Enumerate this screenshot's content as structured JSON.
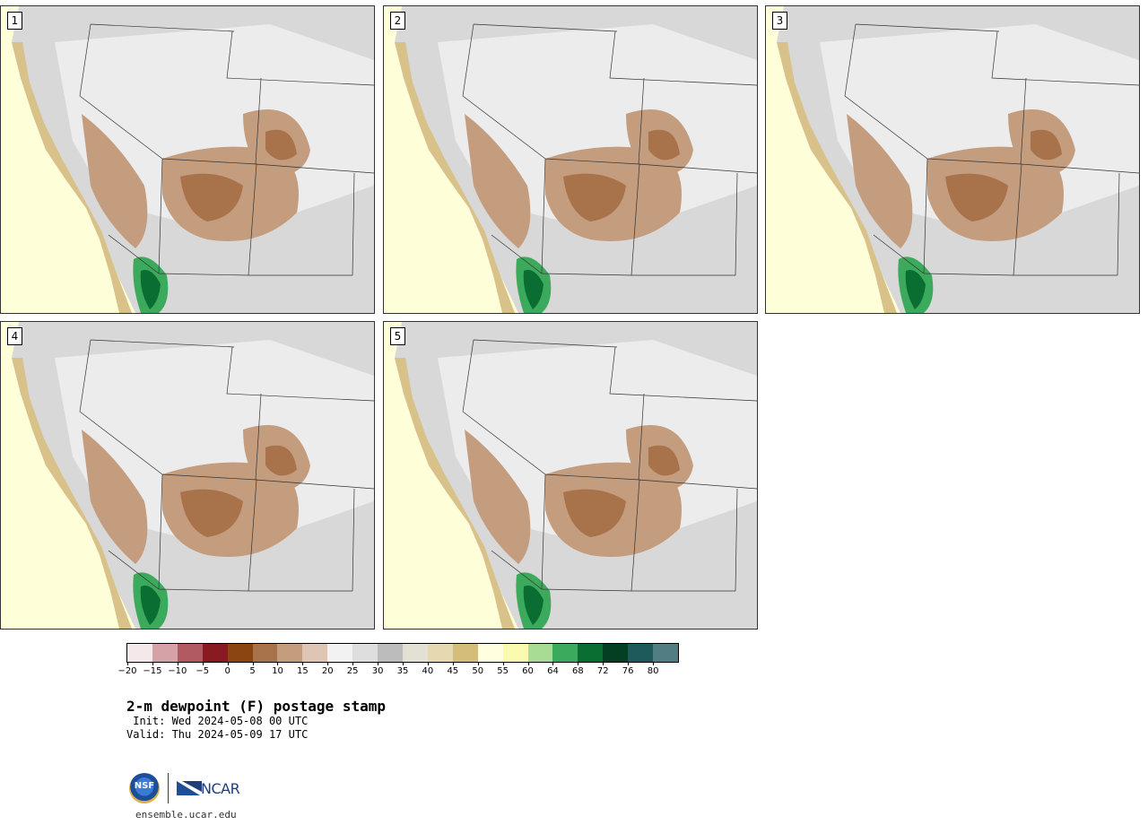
{
  "panels": [
    {
      "label": "1"
    },
    {
      "label": "2"
    },
    {
      "label": "3"
    },
    {
      "label": "4"
    },
    {
      "label": "5"
    }
  ],
  "colorbar": {
    "colors": [
      "#f5e8ea",
      "#d4a2a7",
      "#b25a62",
      "#8a1a22",
      "#8b4513",
      "#a8724a",
      "#c49c7e",
      "#dfc6b4",
      "#f2f2f2",
      "#dedede",
      "#bcbcbc",
      "#e3e1d3",
      "#e6d8b0",
      "#d4bc7a",
      "#ffffe0",
      "#fafab0",
      "#a8dc94",
      "#3caa5c",
      "#0a6e32",
      "#053f23",
      "#1e5a5c",
      "#507e82"
    ],
    "tick_labels": [
      "−20",
      "−15",
      "−10",
      "−5",
      "0",
      "5",
      "10",
      "15",
      "20",
      "25",
      "30",
      "35",
      "40",
      "45",
      "50",
      "55",
      "60",
      "64",
      "68",
      "72",
      "76",
      "80"
    ]
  },
  "title": "2-m dewpoint (F) postage stamp",
  "init": " Init: Wed 2024-05-08 00 UTC",
  "valid": "Valid: Thu 2024-05-09 17 UTC",
  "logos": {
    "nsf": "NSF",
    "ncar": "NCAR",
    "nsf_icon": "nsf-logo-icon",
    "ncar_icon": "ncar-logo-icon"
  },
  "url": "ensemble.ucar.edu"
}
